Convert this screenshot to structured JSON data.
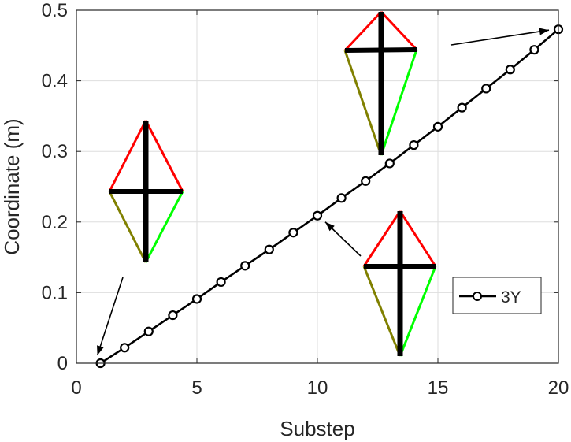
{
  "chart_data": {
    "type": "line",
    "xlabel": "Substep",
    "ylabel": "Coordinate (m)",
    "xlim": [
      0,
      20
    ],
    "ylim": [
      0,
      0.5
    ],
    "xticks": [
      "0",
      "5",
      "10",
      "15",
      "20"
    ],
    "yticks": [
      "0",
      "0.1",
      "0.2",
      "0.3",
      "0.4",
      "0.5"
    ],
    "grid": true,
    "legend_position": "lower-right",
    "series": [
      {
        "name": "3Y",
        "color": "#000000",
        "marker": "circle",
        "x": [
          1,
          2,
          3,
          4,
          5,
          6,
          7,
          8,
          9,
          10,
          11,
          12,
          13,
          14,
          15,
          16,
          17,
          18,
          19,
          20
        ],
        "values": [
          0,
          0.022,
          0.045,
          0.068,
          0.091,
          0.115,
          0.138,
          0.161,
          0.185,
          0.209,
          0.234,
          0.258,
          0.283,
          0.309,
          0.335,
          0.362,
          0.389,
          0.416,
          0.444,
          0.473
        ]
      }
    ],
    "annotations": {
      "shape_colors": {
        "upper_edges": "#ff0000",
        "lower_left_edge": "#808000",
        "lower_right_edge": "#00ff00",
        "cross": "#000000"
      },
      "kites": [
        {
          "name": "kite-substep-1",
          "points_to": [
            1,
            0.0
          ]
        },
        {
          "name": "kite-substep-10",
          "points_to": [
            10,
            0.209
          ]
        },
        {
          "name": "kite-substep-20",
          "points_to": [
            20,
            0.473
          ]
        }
      ]
    }
  }
}
